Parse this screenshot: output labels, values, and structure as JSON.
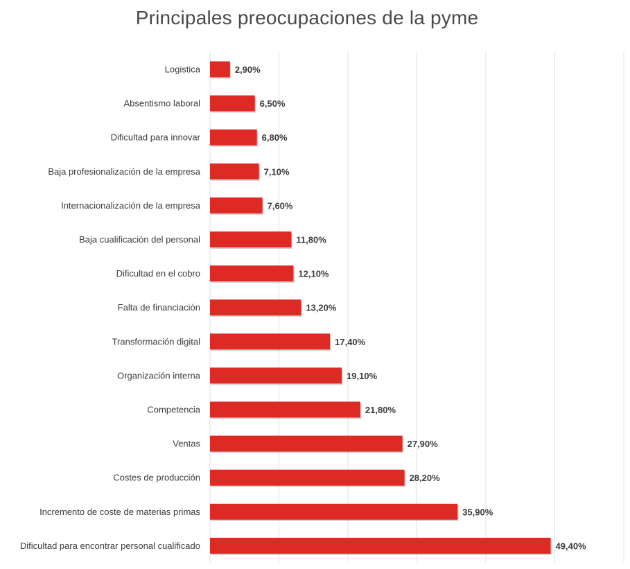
{
  "chart_data": {
    "type": "bar",
    "orientation": "horizontal",
    "title": "Principales preocupaciones de la pyme",
    "xlim": [
      0,
      60
    ],
    "grid": "vertical",
    "legend": "none",
    "colors": {
      "bar": "#dd2a25",
      "text": "#3c3c3c",
      "grid": "#e0e0e0"
    },
    "categories": [
      "Logistica",
      "Absentismo laboral",
      "Dificultad para innovar",
      "Baja profesionalización de la empresa",
      "Internacionalización de la empresa",
      "Baja cualificación del personal",
      "Dificultad en el cobro",
      "Falta de financiación",
      "Transformación digital",
      "Organización interna",
      "Competencia",
      "Ventas",
      "Costes de producción",
      "Incremento de coste de materias primas",
      "Dificultad para encontrar personal cualificado"
    ],
    "values": [
      2.9,
      6.5,
      6.8,
      7.1,
      7.6,
      11.8,
      12.1,
      13.2,
      17.4,
      19.1,
      21.8,
      27.9,
      28.2,
      35.9,
      49.4
    ],
    "value_labels": [
      "2,90%",
      "6,50%",
      "6,80%",
      "7,10%",
      "7,60%",
      "11,80%",
      "12,10%",
      "13,20%",
      "17,40%",
      "19,10%",
      "21,80%",
      "27,90%",
      "28,20%",
      "35,90%",
      "49,40%"
    ]
  }
}
